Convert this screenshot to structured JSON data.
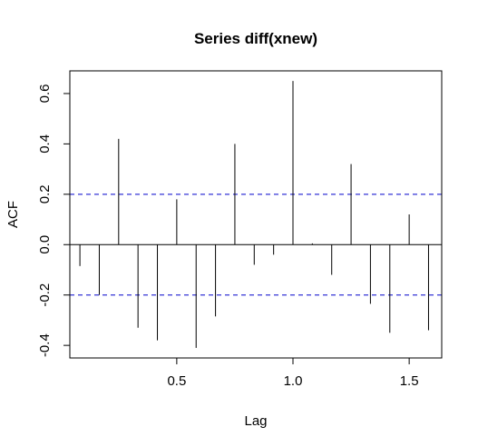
{
  "chart_data": {
    "type": "bar",
    "title": "Series diff(xnew)",
    "xlabel": "Lag",
    "ylabel": "ACF",
    "xlim": [
      0.04,
      1.64
    ],
    "ylim": [
      -0.45,
      0.69
    ],
    "x_ticks": [
      0.5,
      1.0,
      1.5
    ],
    "x_tick_labels": [
      "0.5",
      "1.0",
      "1.5"
    ],
    "y_ticks": [
      -0.4,
      -0.2,
      0.0,
      0.2,
      0.4,
      0.6
    ],
    "y_tick_labels": [
      "-0.4",
      "-0.2",
      "0.0",
      "0.2",
      "0.4",
      "0.6"
    ],
    "confidence_bounds": [
      0.2,
      -0.2
    ],
    "colors": {
      "bars": "#000000",
      "bounds": "#0000cc",
      "zero_line": "#000000"
    },
    "lags": [
      0.0833,
      0.1667,
      0.25,
      0.3333,
      0.4167,
      0.5,
      0.5833,
      0.6667,
      0.75,
      0.8333,
      0.9167,
      1.0,
      1.0833,
      1.1667,
      1.25,
      1.3333,
      1.4167,
      1.5,
      1.5833
    ],
    "values": [
      -0.085,
      -0.2,
      0.42,
      -0.33,
      -0.38,
      0.18,
      -0.41,
      -0.285,
      0.4,
      -0.08,
      -0.04,
      0.65,
      0.005,
      -0.12,
      0.32,
      -0.235,
      -0.35,
      0.12,
      -0.34
    ]
  }
}
